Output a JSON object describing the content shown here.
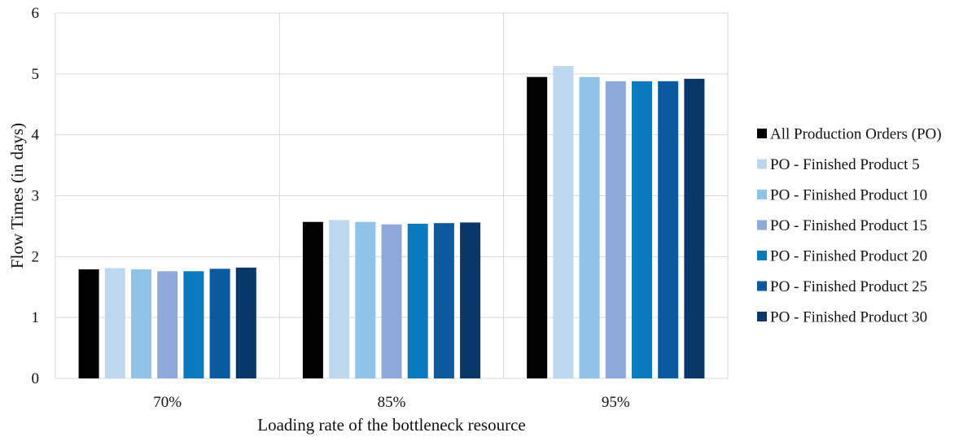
{
  "chart_data": {
    "type": "bar",
    "title": "",
    "xlabel": "Loading rate of  the bottleneck resource",
    "ylabel": "Flow Times (in days)",
    "ylim": [
      0,
      6
    ],
    "yticks": [
      0,
      1,
      2,
      3,
      4,
      5,
      6
    ],
    "grid": true,
    "legend_position": "right",
    "categories": [
      "70%",
      "85%",
      "95%"
    ],
    "series": [
      {
        "name": "All Production Orders (PO)",
        "color": "#000000",
        "values": [
          1.79,
          2.57,
          4.95
        ]
      },
      {
        "name": "PO - Finished Product 5",
        "color": "#bdd7ee",
        "values": [
          1.81,
          2.6,
          5.13
        ]
      },
      {
        "name": "PO - Finished Product 10",
        "color": "#8fc3e8",
        "values": [
          1.79,
          2.57,
          4.95
        ]
      },
      {
        "name": "PO - Finished Product 15",
        "color": "#8eaadb",
        "values": [
          1.76,
          2.53,
          4.88
        ]
      },
      {
        "name": "PO - Finished Product 20",
        "color": "#0a7abf",
        "values": [
          1.76,
          2.54,
          4.88
        ]
      },
      {
        "name": "PO - Finished Product 25",
        "color": "#0b5aa0",
        "values": [
          1.8,
          2.55,
          4.88
        ]
      },
      {
        "name": "PO - Finished Product 30",
        "color": "#093868",
        "values": [
          1.82,
          2.56,
          4.92
        ]
      }
    ]
  }
}
